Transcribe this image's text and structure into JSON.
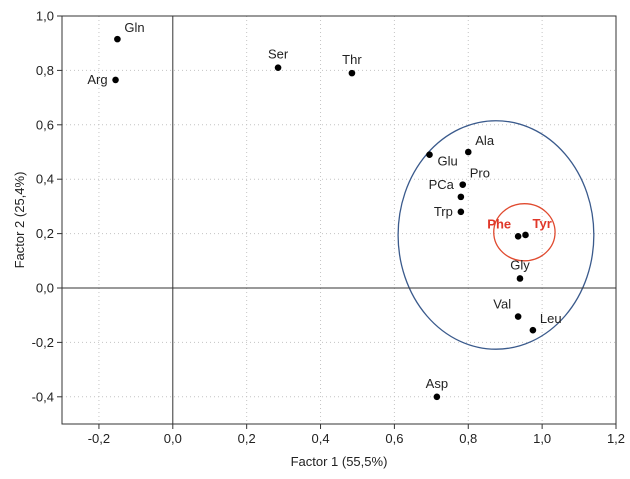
{
  "chart_data": {
    "type": "scatter",
    "title": "",
    "xlabel": "Factor 1 (55,5%)",
    "ylabel": "Factor 2 (25,4%)",
    "xlim": [
      -0.3,
      1.2
    ],
    "ylim": [
      -0.5,
      1.0
    ],
    "x_ticks": [
      "-0,2",
      "0,0",
      "0,2",
      "0,4",
      "0,6",
      "0,8",
      "1,0",
      "1,2"
    ],
    "x_tick_values": [
      -0.2,
      0.0,
      0.2,
      0.4,
      0.6,
      0.8,
      1.0,
      1.2
    ],
    "y_ticks": [
      "1,0",
      "0,8",
      "0,6",
      "0,4",
      "0,2",
      "0,0",
      "-0,2",
      "-0,4"
    ],
    "y_tick_values": [
      1.0,
      0.8,
      0.6,
      0.4,
      0.2,
      0.0,
      -0.2,
      -0.4
    ],
    "grid": true,
    "reference_lines": {
      "x": 0,
      "y": 0
    },
    "points": [
      {
        "label": "Gln",
        "x": -0.15,
        "y": 0.915,
        "label_pos": "right-top"
      },
      {
        "label": "Arg",
        "x": -0.155,
        "y": 0.765,
        "label_pos": "left"
      },
      {
        "label": "Ser",
        "x": 0.285,
        "y": 0.81,
        "label_pos": "top"
      },
      {
        "label": "Thr",
        "x": 0.485,
        "y": 0.79,
        "label_pos": "top"
      },
      {
        "label": "Ala",
        "x": 0.8,
        "y": 0.5,
        "label_pos": "right-top"
      },
      {
        "label": "Glu",
        "x": 0.695,
        "y": 0.49,
        "label_pos": "right-below"
      },
      {
        "label": "Pro",
        "x": 0.785,
        "y": 0.38,
        "label_pos": "right-top"
      },
      {
        "label": "PCa",
        "x": 0.78,
        "y": 0.335,
        "label_pos": "left-top"
      },
      {
        "label": "Trp",
        "x": 0.78,
        "y": 0.28,
        "label_pos": "left"
      },
      {
        "label": "Phe",
        "x": 0.935,
        "y": 0.19,
        "label_pos": "left-top",
        "highlight": true
      },
      {
        "label": "Tyr",
        "x": 0.955,
        "y": 0.195,
        "label_pos": "right-top",
        "highlight": true
      },
      {
        "label": "Gly",
        "x": 0.94,
        "y": 0.035,
        "label_pos": "top"
      },
      {
        "label": "Val",
        "x": 0.935,
        "y": -0.105,
        "label_pos": "left-top"
      },
      {
        "label": "Leu",
        "x": 0.975,
        "y": -0.155,
        "label_pos": "right-top"
      },
      {
        "label": "Asp",
        "x": 0.715,
        "y": -0.4,
        "label_pos": "top"
      }
    ],
    "circles": [
      {
        "name": "large-cluster-circle",
        "cx": 0.875,
        "cy": 0.195,
        "rx": 0.265,
        "ry": 0.42,
        "color": "#3a5a8c"
      },
      {
        "name": "phe-tyr-circle",
        "cx": 0.952,
        "cy": 0.205,
        "rx": 0.083,
        "ry": 0.105,
        "color": "#e04a2f"
      }
    ],
    "colors": {
      "point": "#000000",
      "label": "#222222",
      "highlight_label": "#e0382a",
      "axis": "#333333",
      "grid": "#c4c4c4"
    }
  }
}
